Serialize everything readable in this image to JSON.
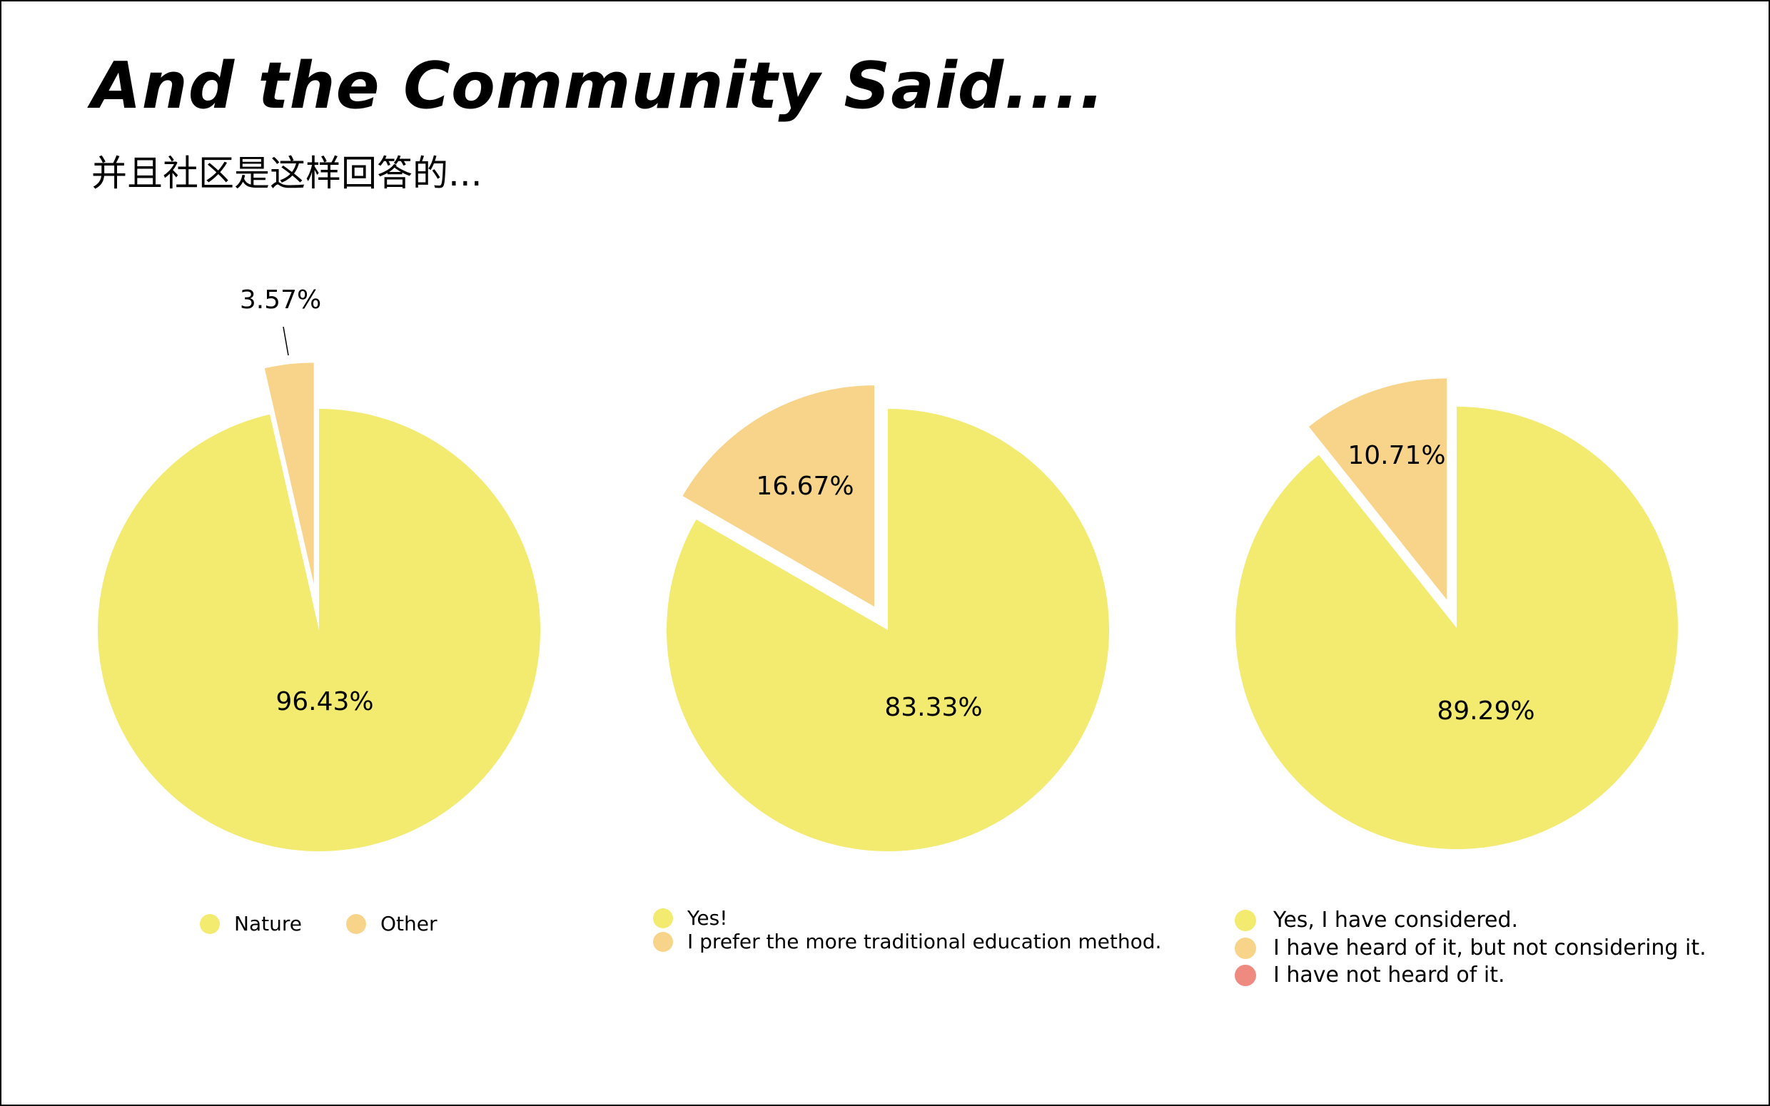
{
  "header": {
    "title": "And the Community Said....",
    "subtitle": "并且社区是这样回答的..."
  },
  "colors": {
    "yellow": "#f3ea70",
    "orange": "#f7d48a",
    "red": "#ef8a80"
  },
  "chart_data": [
    {
      "type": "pie",
      "slices": [
        {
          "label": "Nature",
          "value": 96.43,
          "value_label": "96.43%",
          "color": "#f3ea70",
          "exploded": false
        },
        {
          "label": "Other",
          "value": 3.57,
          "value_label": "3.57%",
          "color": "#f7d48a",
          "exploded": true
        }
      ],
      "legend": [
        "Nature",
        "Other"
      ]
    },
    {
      "type": "pie",
      "slices": [
        {
          "label": "Yes!",
          "value": 83.33,
          "value_label": "83.33%",
          "color": "#f3ea70",
          "exploded": false
        },
        {
          "label": "I prefer the more traditional education method.",
          "value": 16.67,
          "value_label": "16.67%",
          "color": "#f7d48a",
          "exploded": true
        }
      ],
      "legend": [
        "Yes!",
        "I prefer the more traditional education method."
      ]
    },
    {
      "type": "pie",
      "slices": [
        {
          "label": "Yes, I have considered.",
          "value": 89.29,
          "value_label": "89.29%",
          "color": "#f3ea70",
          "exploded": false
        },
        {
          "label": "I have heard of it, but not considering it.",
          "value": 10.71,
          "value_label": "10.71%",
          "color": "#f7d48a",
          "exploded": true
        },
        {
          "label": "I have not heard of it.",
          "value": 0,
          "value_label": "",
          "color": "#ef8a80",
          "exploded": false
        }
      ],
      "legend": [
        "Yes, I have considered.",
        "I have heard of it, but not considering it.",
        "I have not heard of it."
      ]
    }
  ]
}
